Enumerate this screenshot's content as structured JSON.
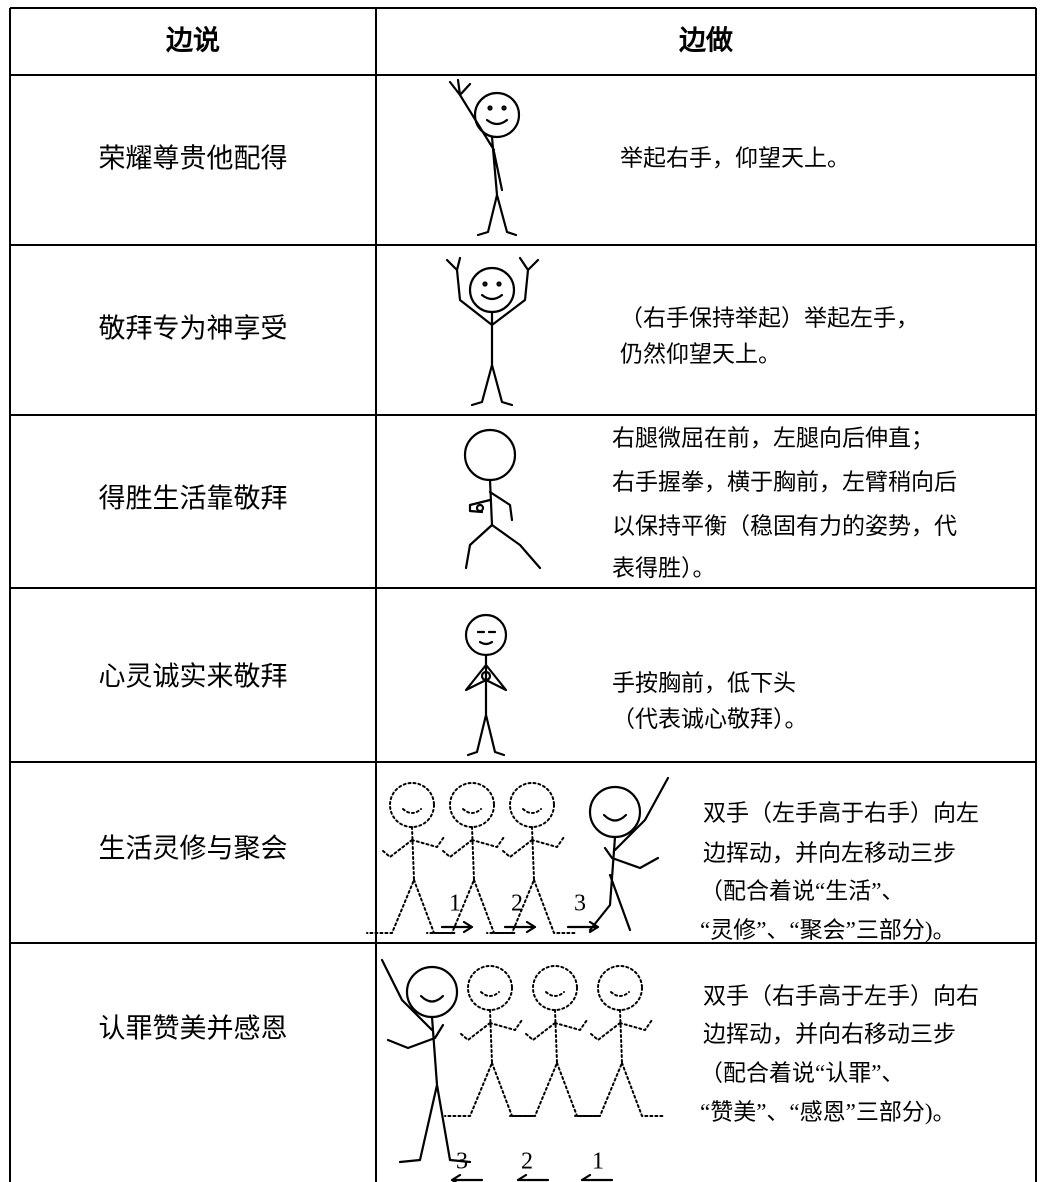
{
  "header": {
    "say": "边说",
    "do": "边做"
  },
  "rows": [
    {
      "say": "荣耀尊贵他配得",
      "do": [
        "举起右手，仰望天上。"
      ]
    },
    {
      "say": "敬拜专为神享受",
      "do": [
        "（右手保持举起）举起左手，",
        "仍然仰望天上。"
      ]
    },
    {
      "say": "得胜生活靠敬拜",
      "do": [
        "右腿微屈在前，左腿向后伸直；",
        "右手握拳，横于胸前，左臂稍向后",
        "以保持平衡（稳固有力的姿势，代",
        "表得胜）。"
      ]
    },
    {
      "say": "心灵诚实来敬拜",
      "do": [
        "手按胸前，低下头",
        "（代表诚心敬拜）。"
      ]
    },
    {
      "say": "生活灵修与聚会",
      "do": [
        "双手（左手高于右手）向左",
        "边挥动，并向左移动三步",
        "（配合着说“生活”、",
        "“灵修”、“聚会”三部分)。"
      ],
      "steps": [
        "1",
        "2",
        "3"
      ]
    },
    {
      "say": "认罪赞美并感恩",
      "do": [
        "双手（右手高于左手）向右",
        "边挥动，并向右移动三步",
        "（配合着说“认罪”、",
        "“赞美”、“感恩”三部分)。"
      ],
      "steps": [
        "3",
        "2",
        "1"
      ]
    }
  ]
}
